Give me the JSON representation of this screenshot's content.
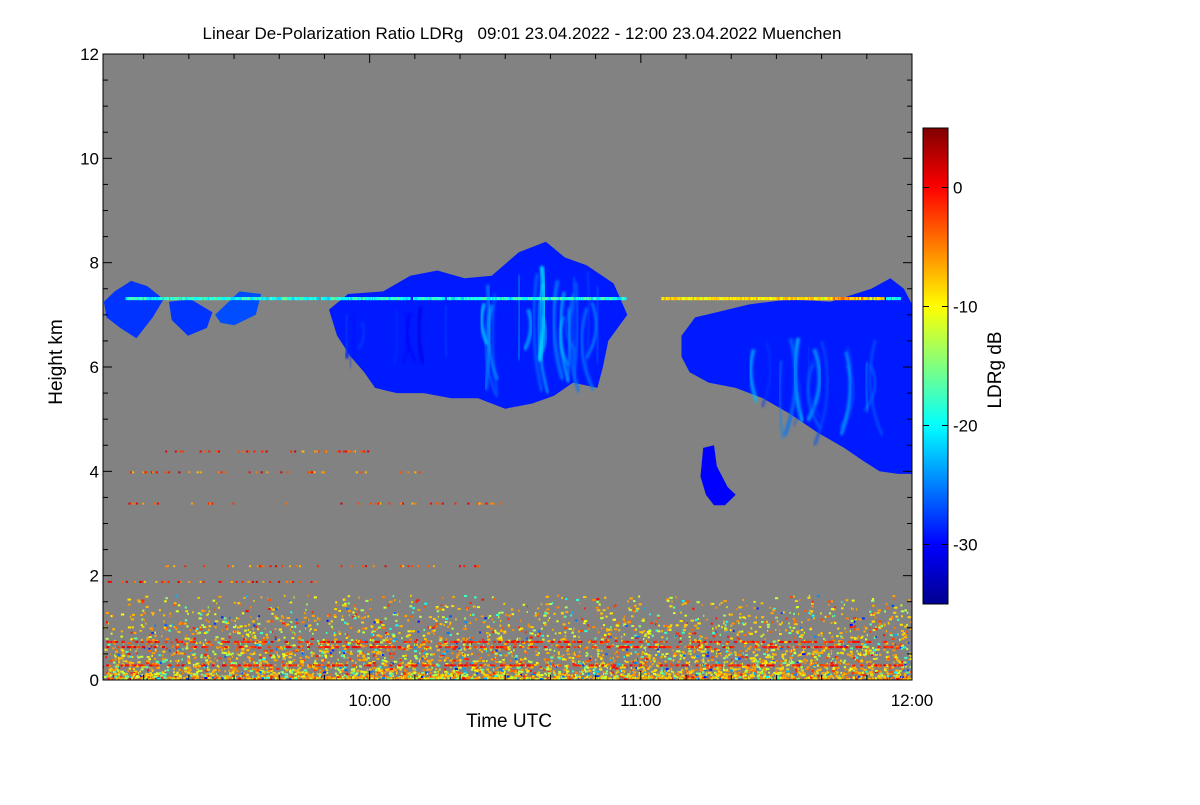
{
  "chart_data": {
    "type": "heatmap",
    "title": "Linear De-Polarization Ratio LDRg   09:01 23.04.2022 - 12:00 23.04.2022 Muenchen",
    "xlabel": "Time UTC",
    "ylabel": "Height km",
    "x_range_utc_hours": [
      9.0167,
      12.0
    ],
    "x_ticks": [
      {
        "value": 10,
        "label": "10:00"
      },
      {
        "value": 11,
        "label": "11:00"
      },
      {
        "value": 12,
        "label": "12:00"
      }
    ],
    "ylim": [
      0,
      12
    ],
    "y_ticks": [
      {
        "value": 0,
        "label": "0"
      },
      {
        "value": 2,
        "label": "2"
      },
      {
        "value": 4,
        "label": "4"
      },
      {
        "value": 6,
        "label": "6"
      },
      {
        "value": 8,
        "label": "8"
      },
      {
        "value": 10,
        "label": "10"
      },
      {
        "value": 12,
        "label": "12"
      }
    ],
    "background_color": "#828282",
    "colorbar": {
      "label": "LDRg dB",
      "range": [
        -35,
        5
      ],
      "ticks": [
        {
          "value": 0,
          "label": "0"
        },
        {
          "value": -10,
          "label": "-10"
        },
        {
          "value": -20,
          "label": "-20"
        },
        {
          "value": -30,
          "label": "-30"
        }
      ],
      "colormap": "jet"
    },
    "features": [
      {
        "name": "cirrus-band-west",
        "time": [
          9.02,
          9.6
        ],
        "height": [
          6.4,
          7.9
        ],
        "ldr_db": -28
      },
      {
        "name": "cirrus-cloud-main",
        "time": [
          9.85,
          10.95
        ],
        "height": [
          5.2,
          8.4
        ],
        "ldr_db": -27
      },
      {
        "name": "cirrus-cloud-east",
        "time": [
          11.15,
          12.0
        ],
        "height": [
          3.9,
          7.7
        ],
        "ldr_db": -28
      },
      {
        "name": "virga-patch",
        "time": [
          11.23,
          11.36
        ],
        "height": [
          3.3,
          4.5
        ],
        "ldr_db": -30
      },
      {
        "name": "thin-layer-7.3km",
        "time": [
          9.1,
          11.95
        ],
        "height": [
          7.2,
          7.4
        ],
        "ldr_db": -14
      },
      {
        "name": "boundary-layer-aerosol",
        "time": [
          9.02,
          12.0
        ],
        "height": [
          0.0,
          1.6
        ],
        "ldr_db": -12
      }
    ]
  }
}
